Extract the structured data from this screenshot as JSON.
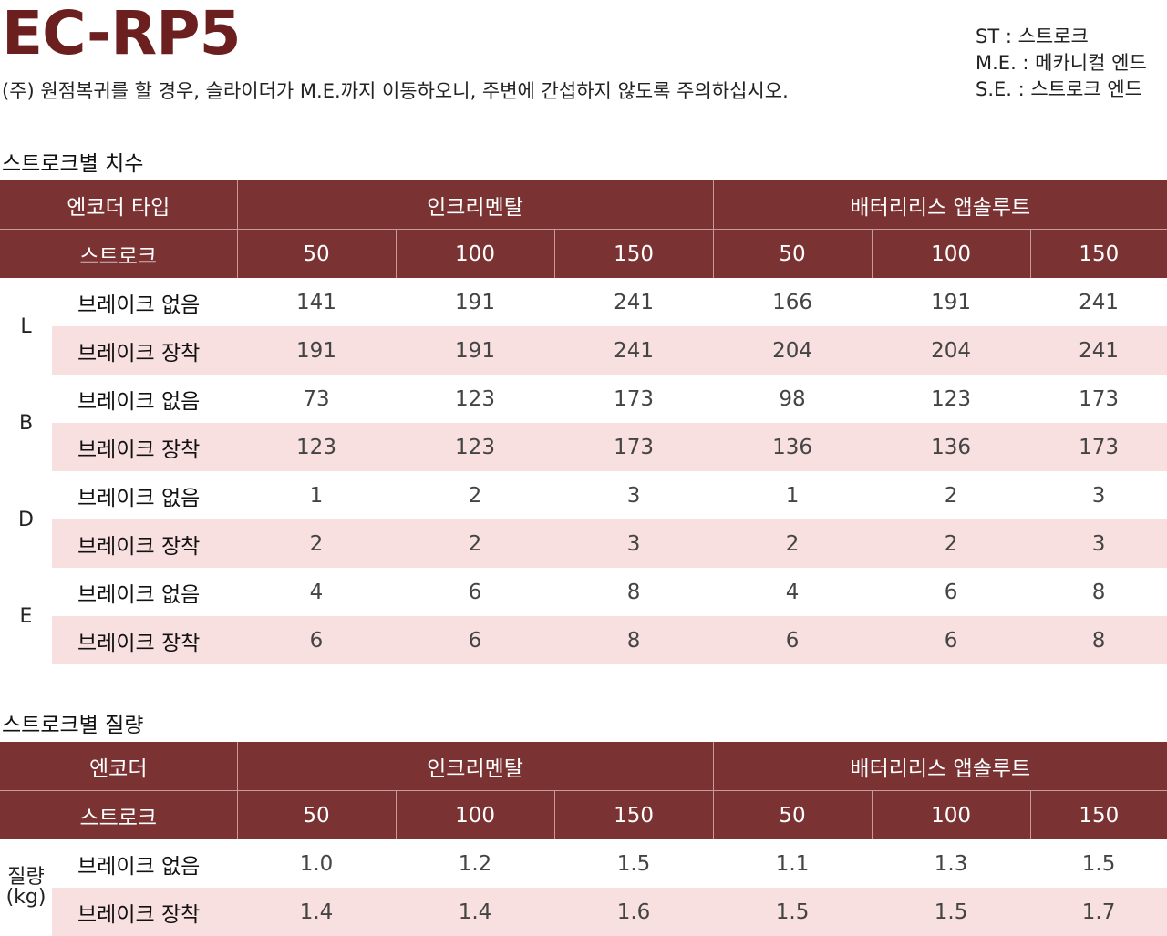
{
  "title": "EC-RP5",
  "note": "(주) 원점복귀를 할 경우, 슬라이더가 M.E.까지 이동하오니, 주변에 간섭하지 않도록 주의하십시오.",
  "legend": [
    "ST : 스트로크",
    "M.E. : 메카니컬 엔드",
    "S.E. : 스트로크 엔드"
  ],
  "dimensions": {
    "section_title": "스트로크별 치수",
    "header_col1": "엔코더 타입",
    "header_inc": "인크리멘탈",
    "header_abs": "배터리리스 앱솔루트",
    "stroke_label": "스트로크",
    "strokes": [
      "50",
      "100",
      "150",
      "50",
      "100",
      "150"
    ],
    "groups": [
      {
        "label": "L",
        "rows": [
          {
            "label": "브레이크 없음",
            "values": [
              "141",
              "191",
              "241",
              "166",
              "191",
              "241"
            ]
          },
          {
            "label": "브레이크 장착",
            "values": [
              "191",
              "191",
              "241",
              "204",
              "204",
              "241"
            ]
          }
        ]
      },
      {
        "label": "B",
        "rows": [
          {
            "label": "브레이크 없음",
            "values": [
              "73",
              "123",
              "173",
              "98",
              "123",
              "173"
            ]
          },
          {
            "label": "브레이크 장착",
            "values": [
              "123",
              "123",
              "173",
              "136",
              "136",
              "173"
            ]
          }
        ]
      },
      {
        "label": "D",
        "rows": [
          {
            "label": "브레이크 없음",
            "values": [
              "1",
              "2",
              "3",
              "1",
              "2",
              "3"
            ]
          },
          {
            "label": "브레이크 장착",
            "values": [
              "2",
              "2",
              "3",
              "2",
              "2",
              "3"
            ]
          }
        ]
      },
      {
        "label": "E",
        "rows": [
          {
            "label": "브레이크 없음",
            "values": [
              "4",
              "6",
              "8",
              "4",
              "6",
              "8"
            ]
          },
          {
            "label": "브레이크 장착",
            "values": [
              "6",
              "6",
              "8",
              "6",
              "6",
              "8"
            ]
          }
        ]
      }
    ]
  },
  "mass": {
    "section_title": "스트로크별 질량",
    "header_col1": "엔코더",
    "header_inc": "인크리멘탈",
    "header_abs": "배터리리스 앱솔루트",
    "stroke_label": "스트로크",
    "strokes": [
      "50",
      "100",
      "150",
      "50",
      "100",
      "150"
    ],
    "group_label_line1": "질량",
    "group_label_line2": "(kg)",
    "rows": [
      {
        "label": "브레이크 없음",
        "values": [
          "1.0",
          "1.2",
          "1.5",
          "1.1",
          "1.3",
          "1.5"
        ]
      },
      {
        "label": "브레이크 장착",
        "values": [
          "1.4",
          "1.4",
          "1.6",
          "1.5",
          "1.5",
          "1.7"
        ]
      }
    ]
  }
}
